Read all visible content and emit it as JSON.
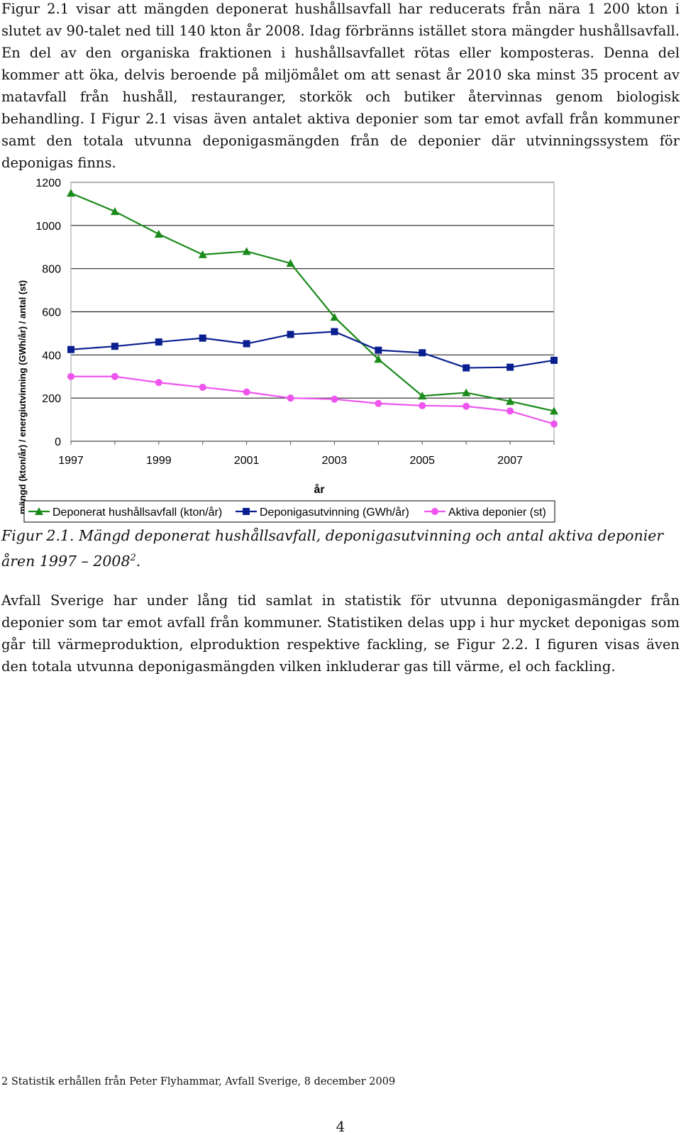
{
  "paragraph1": "Figur 2.1 visar att mängden deponerat hushållsavfall har reducerats från nära 1 200 kton i slutet av 90-talet ned till 140 kton år 2008. Idag förbränns istället stora mängder hushållsavfall. En del av den organiska fraktionen i hushållsavfallet rötas eller komposteras. Denna del kommer att öka, delvis beroende på miljömålet om att senast år 2010 ska minst 35 procent av matavfall från hushåll, restauranger, storkök och butiker återvinnas genom biologisk behandling. I Figur 2.1 visas även antalet aktiva deponier som tar emot avfall från kommuner samt den totala utvunna deponigasmängden från de deponier där utvinningssystem för deponigas finns.",
  "caption": {
    "text": "Figur 2.1. Mängd deponerat hushållsavfall, deponigasutvinning och antal aktiva deponier åren 1997 – 2008",
    "footnote_ref": "2",
    "end": "."
  },
  "paragraph2": "Avfall Sverige har under lång tid samlat in statistik för utvunna deponigasmängder från deponier som tar emot avfall från kommuner. Statistiken delas upp i hur mycket deponigas som går till värmeproduktion, elproduktion respektive fackling, se Figur 2.2. I figuren visas även den totala utvunna deponigasmängden vilken inkluderar gas till värme, el och fackling.",
  "footnote": "2 Statistik erhållen från Peter Flyhammar, Avfall Sverige, 8 december 2009",
  "page_number": "4",
  "chart_data": {
    "type": "line",
    "xlabel": "år",
    "ylabel": "mängd (kton/år) / energiutvinning (GWh/år) / antal (st)",
    "xlim": [
      1997,
      2008
    ],
    "ylim": [
      0,
      1200
    ],
    "x_ticks": [
      "1997",
      "1999",
      "2001",
      "2003",
      "2005",
      "2007"
    ],
    "y_ticks": [
      "0",
      "200",
      "400",
      "600",
      "800",
      "1000",
      "1200"
    ],
    "grid": "horizontal",
    "legend_position": "bottom",
    "x": [
      1997,
      1998,
      1999,
      2000,
      2001,
      2002,
      2003,
      2004,
      2005,
      2006,
      2007,
      2008
    ],
    "series": [
      {
        "name": "Deponerat hushållsavfall (kton/år)",
        "color": "#1a8a1a",
        "marker": "triangle",
        "values": [
          1150,
          1065,
          960,
          865,
          880,
          825,
          575,
          380,
          210,
          225,
          185,
          140
        ]
      },
      {
        "name": "Deponigasutvinning (GWh/år)",
        "color": "#0a1f8f",
        "marker": "square",
        "values": [
          425,
          440,
          460,
          478,
          452,
          495,
          508,
          422,
          410,
          340,
          343,
          375
        ]
      },
      {
        "name": "Aktiva deponier (st)",
        "color": "#ee55ee",
        "marker": "circle",
        "values": [
          300,
          300,
          272,
          250,
          228,
          200,
          195,
          175,
          165,
          162,
          140,
          80
        ]
      }
    ]
  }
}
